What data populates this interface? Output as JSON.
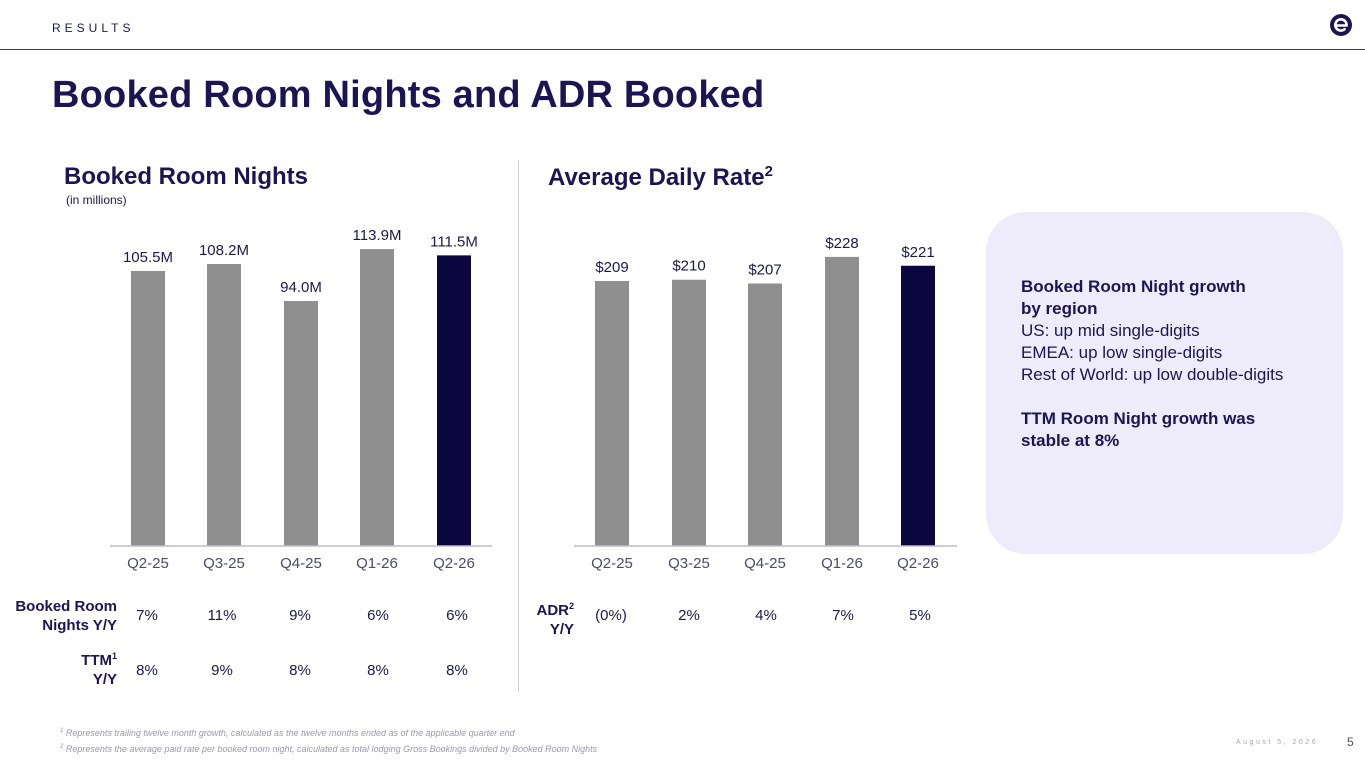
{
  "header": {
    "section": "RESULTS",
    "title": "Booked Room Nights and ADR Booked"
  },
  "colors": {
    "bar_default": "#8f8f8f",
    "bar_highlight": "#0b0640",
    "accent": "#1b1553",
    "callout_bg": "#eeebfa"
  },
  "chart_data": [
    {
      "type": "bar",
      "title": "Booked Room Nights",
      "subtitle": "(in millions)",
      "categories": [
        "Q2-25",
        "Q3-25",
        "Q4-25",
        "Q1-26",
        "Q2-26"
      ],
      "values": [
        105.5,
        108.2,
        94.0,
        113.9,
        111.5
      ],
      "data_labels": [
        "105.5M",
        "108.2M",
        "94.0M",
        "113.9M",
        "111.5M"
      ],
      "highlight_index": 4,
      "ylim": [
        0,
        122
      ],
      "grid": false,
      "legend": "none"
    },
    {
      "type": "bar",
      "title": "Average Daily Rate",
      "title_superscript": "2",
      "categories": [
        "Q2-25",
        "Q3-25",
        "Q4-25",
        "Q1-26",
        "Q2-26"
      ],
      "values": [
        209,
        210,
        207,
        228,
        221
      ],
      "data_labels": [
        "$209",
        "$210",
        "$207",
        "$228",
        "$221"
      ],
      "highlight_index": 4,
      "ylim": [
        0,
        235
      ],
      "grid": false,
      "legend": "none"
    }
  ],
  "tables": {
    "rn_yoy": {
      "label_line1": "Booked Room",
      "label_line2": "Nights Y/Y",
      "values": [
        "7%",
        "11%",
        "9%",
        "6%",
        "6%"
      ]
    },
    "ttm_yoy": {
      "label_line1": "TTM",
      "label_sup": "1",
      "label_line2": "Y/Y",
      "values": [
        "8%",
        "9%",
        "8%",
        "8%",
        "8%"
      ]
    },
    "adr_yoy": {
      "label_line1": "ADR",
      "label_sup": "2",
      "label_line2": "Y/Y",
      "values": [
        "(0%)",
        "2%",
        "4%",
        "7%",
        "5%"
      ]
    }
  },
  "callout": {
    "heading_line1": "Booked Room Night growth",
    "heading_line2": "by region",
    "lines": [
      "US: up mid single-digits",
      "EMEA: up low single-digits",
      "Rest of World: up low double-digits"
    ],
    "closing_line1": "TTM Room Night growth was",
    "closing_line2": "stable at 8%"
  },
  "footnotes": {
    "note1_num": "1",
    "note1": "Represents trailing twelve month growth, calculated as the twelve months ended as of the applicable quarter end",
    "note2_num": "2",
    "note2": "Represents the average paid rate per booked room night, calculated as total lodging Gross Bookings divided by Booked Room Nights"
  },
  "footer": {
    "date": "August 5, 2026",
    "page": "5"
  }
}
